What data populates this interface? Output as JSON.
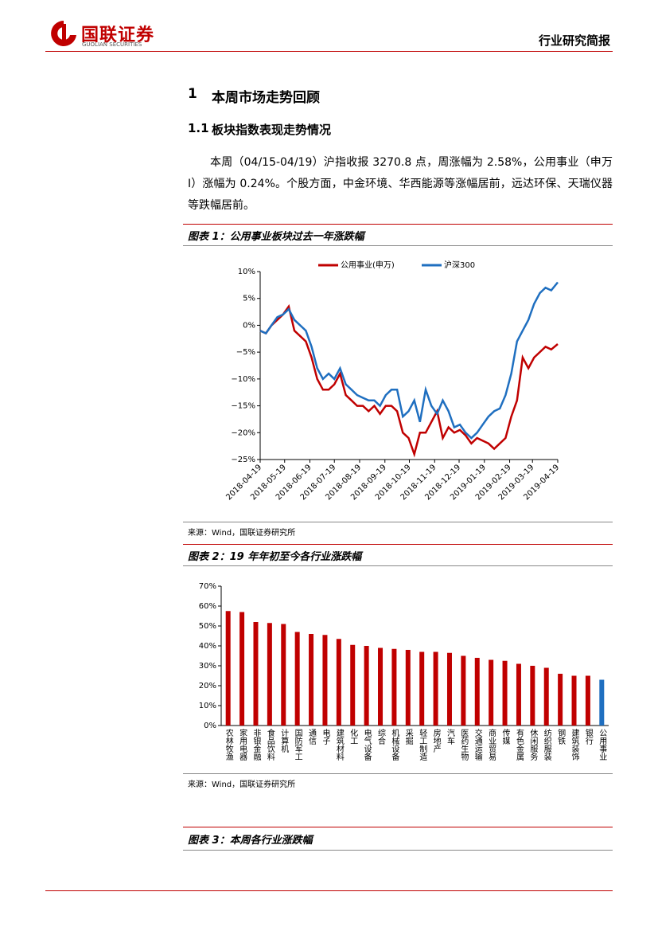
{
  "header": {
    "logo_cn": "国联证券",
    "logo_en": "GUOLIAN SECURITIES",
    "report_type": "行业研究简报"
  },
  "section": {
    "number": "1",
    "title": "本周市场走势回顾"
  },
  "subsection": {
    "number": "1.1",
    "title": "板块指数表现走势情况"
  },
  "paragraph": "本周（04/15-04/19）沪指收报 3270.8 点，周涨幅为 2.58%，公用事业（申万Ⅰ）涨幅为 0.24%。个股方面，中金环境、华西能源等涨幅居前，远达环保、天瑞仪器等跌幅居前。",
  "figures": [
    {
      "caption": "图表 1：公用事业板块过去一年涨跌幅",
      "source": "来源：Wind，国联证券研究所"
    },
    {
      "caption": "图表 2：19 年年初至今各行业涨跌幅",
      "source": "来源：Wind，国联证券研究所"
    },
    {
      "caption": "图表 3：本周各行业涨跌幅"
    }
  ],
  "chart_data": [
    {
      "type": "line",
      "x": [
        "2018-04-19",
        "2018-04-26",
        "2018-05-03",
        "2018-05-10",
        "2018-05-17",
        "2018-05-24",
        "2018-05-31",
        "2018-06-07",
        "2018-06-14",
        "2018-06-21",
        "2018-06-28",
        "2018-07-05",
        "2018-07-12",
        "2018-07-19",
        "2018-07-26",
        "2018-08-02",
        "2018-08-09",
        "2018-08-16",
        "2018-08-23",
        "2018-08-30",
        "2018-09-06",
        "2018-09-13",
        "2018-09-20",
        "2018-09-27",
        "2018-10-04",
        "2018-10-11",
        "2018-10-18",
        "2018-10-25",
        "2018-11-01",
        "2018-11-08",
        "2018-11-15",
        "2018-11-22",
        "2018-11-29",
        "2018-12-06",
        "2018-12-13",
        "2018-12-20",
        "2018-12-27",
        "2019-01-03",
        "2019-01-10",
        "2019-01-17",
        "2019-01-24",
        "2019-01-31",
        "2019-02-07",
        "2019-02-14",
        "2019-02-21",
        "2019-02-28",
        "2019-03-07",
        "2019-03-14",
        "2019-03-21",
        "2019-03-28",
        "2019-04-04",
        "2019-04-11",
        "2019-04-19"
      ],
      "series": [
        {
          "name": "公用事业(申万)",
          "color": "#c00000",
          "values": [
            -1,
            -1.5,
            0,
            1,
            2,
            3.5,
            -1,
            -2,
            -3,
            -6,
            -10,
            -12,
            -12,
            -11,
            -9,
            -13,
            -14,
            -15,
            -15,
            -16,
            -15,
            -16.5,
            -15,
            -15,
            -16,
            -20,
            -21,
            -24,
            -20,
            -20,
            -18,
            -16,
            -21,
            -19,
            -20,
            -19.5,
            -20.5,
            -22,
            -21,
            -21.5,
            -22,
            -23,
            -22,
            -21,
            -17,
            -14,
            -6,
            -8,
            -6,
            -5,
            -4,
            -4.5,
            -3.5
          ]
        },
        {
          "name": "沪深300",
          "color": "#1f6fc0",
          "values": [
            -1,
            -1.5,
            0,
            1.5,
            2,
            3,
            1,
            0,
            -1,
            -4,
            -8,
            -10,
            -9,
            -10,
            -8,
            -11,
            -12,
            -13,
            -13.5,
            -14,
            -14,
            -15,
            -13,
            -12,
            -12,
            -17,
            -16,
            -14,
            -18,
            -12,
            -15,
            -16.5,
            -14,
            -16,
            -19,
            -18.5,
            -20,
            -21,
            -20,
            -18.5,
            -17,
            -16,
            -15.5,
            -13,
            -9,
            -3,
            -1,
            1,
            4,
            6,
            7,
            6.5,
            8
          ]
        }
      ],
      "xticks": [
        "2018-04-19",
        "2018-05-19",
        "2018-06-19",
        "2018-07-19",
        "2018-08-19",
        "2018-09-19",
        "2018-10-19",
        "2018-11-19",
        "2018-12-19",
        "2019-01-19",
        "2019-02-19",
        "2019-03-19",
        "2019-04-19"
      ],
      "ylim": [
        -25,
        10
      ],
      "yticks": [
        {
          "value": -25,
          "label": "−25%"
        },
        {
          "value": -20,
          "label": "−20%"
        },
        {
          "value": -15,
          "label": "−15%"
        },
        {
          "value": -10,
          "label": "−10%"
        },
        {
          "value": -5,
          "label": "−5%"
        },
        {
          "value": 0,
          "label": "0%"
        },
        {
          "value": 5,
          "label": "5%"
        },
        {
          "value": 10,
          "label": "10%"
        }
      ],
      "legend": "top"
    },
    {
      "type": "bar",
      "categories": [
        "农林牧渔",
        "家用电器",
        "非银金融",
        "食品饮料",
        "计算机",
        "国防军工",
        "通信",
        "电子",
        "建筑材料",
        "化工",
        "电气设备",
        "综合",
        "机械设备",
        "采掘",
        "轻工制造",
        "房地产",
        "汽车",
        "医药生物",
        "交通运输",
        "商业贸易",
        "传媒",
        "有色金属",
        "休闲服务",
        "纺织服装",
        "钢铁",
        "建筑装饰",
        "银行",
        "公用事业"
      ],
      "values": [
        57.5,
        57,
        52,
        51.5,
        51,
        47,
        46,
        45.5,
        43.5,
        40.5,
        40,
        39,
        38.5,
        38,
        37,
        37,
        36.5,
        35,
        34,
        33,
        32.5,
        31,
        30,
        29,
        26,
        25,
        25,
        23
      ],
      "colors": [
        "#c00000",
        "#c00000",
        "#c00000",
        "#c00000",
        "#c00000",
        "#c00000",
        "#c00000",
        "#c00000",
        "#c00000",
        "#c00000",
        "#c00000",
        "#c00000",
        "#c00000",
        "#c00000",
        "#c00000",
        "#c00000",
        "#c00000",
        "#c00000",
        "#c00000",
        "#c00000",
        "#c00000",
        "#c00000",
        "#c00000",
        "#c00000",
        "#c00000",
        "#c00000",
        "#c00000",
        "#1f6fc0"
      ],
      "ylim": [
        0,
        70
      ],
      "yticks": [
        {
          "value": 0,
          "label": "0%"
        },
        {
          "value": 10,
          "label": "10%"
        },
        {
          "value": 20,
          "label": "20%"
        },
        {
          "value": 30,
          "label": "30%"
        },
        {
          "value": 40,
          "label": "40%"
        },
        {
          "value": 50,
          "label": "50%"
        },
        {
          "value": 60,
          "label": "60%"
        },
        {
          "value": 70,
          "label": "70%"
        }
      ]
    }
  ]
}
